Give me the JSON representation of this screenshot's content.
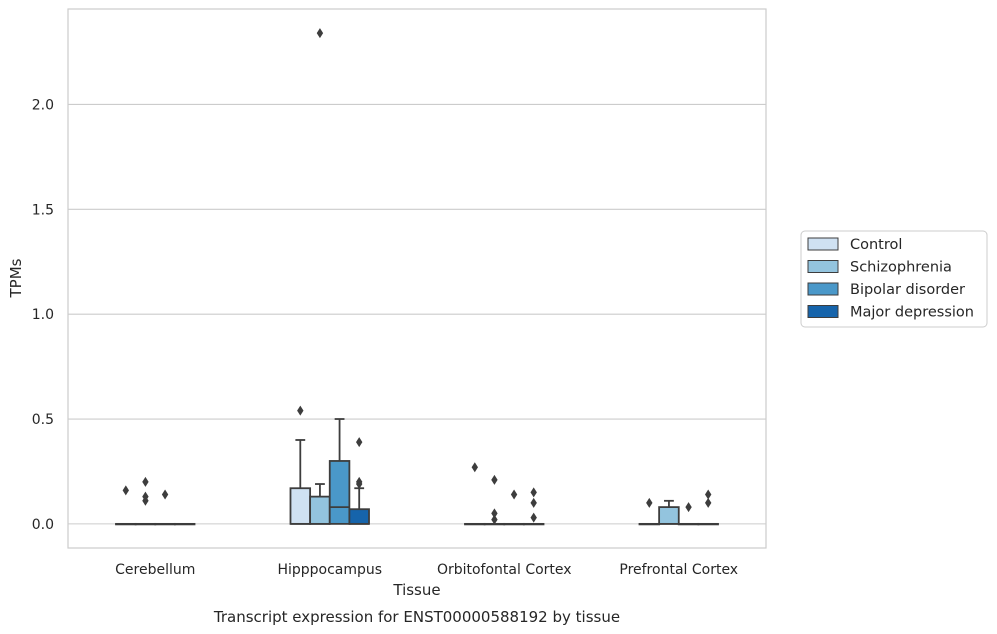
{
  "chart_data": {
    "type": "box",
    "title": "",
    "caption": "Transcript expression for ENST00000588192 by tissue",
    "xlabel": "Tissue",
    "ylabel": "TPMs",
    "ylim": [
      -0.115,
      2.455
    ],
    "yticks": [
      0.0,
      0.5,
      1.0,
      1.5,
      2.0
    ],
    "ytick_labels": [
      "0.0",
      "0.5",
      "1.0",
      "1.5",
      "2.0"
    ],
    "grid": "horizontal",
    "legend_position": "right",
    "categories": [
      "Cerebellum",
      "Hipppocampus",
      "Orbitofontal Cortex",
      "Prefrontal Cortex"
    ],
    "series": [
      {
        "name": "Control",
        "color": "#cfe1f2",
        "boxes": [
          {
            "q1": 0,
            "median": 0,
            "q3": 0,
            "whisker_low": 0,
            "whisker_high": 0,
            "outliers": [
              0.16
            ]
          },
          {
            "q1": 0,
            "median": 0,
            "q3": 0.17,
            "whisker_low": 0,
            "whisker_high": 0.4,
            "outliers": [
              0.54
            ]
          },
          {
            "q1": 0,
            "median": 0,
            "q3": 0,
            "whisker_low": 0,
            "whisker_high": 0,
            "outliers": [
              0.27
            ]
          },
          {
            "q1": 0,
            "median": 0,
            "q3": 0,
            "whisker_low": 0,
            "whisker_high": 0,
            "outliers": [
              0.1
            ]
          }
        ]
      },
      {
        "name": "Schizophrenia",
        "color": "#93c4de",
        "boxes": [
          {
            "q1": 0,
            "median": 0,
            "q3": 0,
            "whisker_low": 0,
            "whisker_high": 0,
            "outliers": [
              0.11,
              0.13,
              0.2
            ]
          },
          {
            "q1": 0,
            "median": 0,
            "q3": 0.13,
            "whisker_low": 0,
            "whisker_high": 0.19,
            "outliers": [
              2.34
            ]
          },
          {
            "q1": 0,
            "median": 0,
            "q3": 0,
            "whisker_low": 0,
            "whisker_high": 0,
            "outliers": [
              0.02,
              0.05,
              0.21
            ]
          },
          {
            "q1": 0,
            "median": 0,
            "q3": 0.08,
            "whisker_low": 0,
            "whisker_high": 0.11,
            "outliers": []
          }
        ]
      },
      {
        "name": "Bipolar disorder",
        "color": "#4a98c9",
        "boxes": [
          {
            "q1": 0,
            "median": 0,
            "q3": 0,
            "whisker_low": 0,
            "whisker_high": 0,
            "outliers": [
              0.14
            ]
          },
          {
            "q1": 0,
            "median": 0.08,
            "q3": 0.3,
            "whisker_low": 0,
            "whisker_high": 0.5,
            "outliers": []
          },
          {
            "q1": 0,
            "median": 0,
            "q3": 0,
            "whisker_low": 0,
            "whisker_high": 0,
            "outliers": [
              0.14
            ]
          },
          {
            "q1": 0,
            "median": 0,
            "q3": 0,
            "whisker_low": 0,
            "whisker_high": 0,
            "outliers": [
              0.08
            ]
          }
        ]
      },
      {
        "name": "Major depression",
        "color": "#1664ab",
        "boxes": [
          {
            "q1": 0,
            "median": 0,
            "q3": 0,
            "whisker_low": 0,
            "whisker_high": 0,
            "outliers": []
          },
          {
            "q1": 0,
            "median": 0,
            "q3": 0.07,
            "whisker_low": 0,
            "whisker_high": 0.17,
            "outliers": [
              0.19,
              0.2,
              0.39
            ]
          },
          {
            "q1": 0,
            "median": 0,
            "q3": 0,
            "whisker_low": 0,
            "whisker_high": 0,
            "outliers": [
              0.03,
              0.1,
              0.15
            ]
          },
          {
            "q1": 0,
            "median": 0,
            "q3": 0,
            "whisker_low": 0,
            "whisker_high": 0,
            "outliers": [
              0.1,
              0.14
            ]
          }
        ]
      }
    ]
  }
}
